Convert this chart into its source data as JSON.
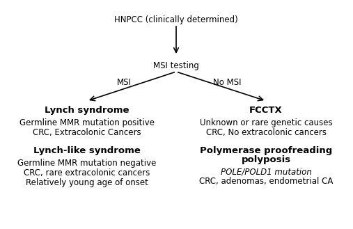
{
  "bg_color": "#ffffff",
  "top_label": "HNPCC (clinically determined)",
  "mid_label": "MSI testing",
  "msi_label": "MSI",
  "no_msi_label": "No MSI",
  "left_box": {
    "title": "Lynch syndrome",
    "lines": [
      "Germline MMR mutation positive",
      "CRC, Extracolonic Cancers"
    ]
  },
  "left_box2": {
    "title": "Lynch-like syndrome",
    "lines": [
      "Germline MMR mutation negative",
      "CRC, rare extracolonic cancers",
      "Relatively young age of onset"
    ]
  },
  "right_box": {
    "title": "FCCTX",
    "lines": [
      "Unknown or rare genetic causes",
      "CRC, No extracolonic cancers"
    ]
  },
  "right_box2": {
    "title_line1": "Polymerase proofreading",
    "title_line2": "polyposis",
    "lines_italic": [
      "POLE/POLD1 mutation"
    ],
    "lines_normal": [
      "CRC, adenomas, endometrial CA"
    ]
  },
  "arrow_color": "#000000",
  "text_color": "#000000",
  "font_size_main": 8.5,
  "font_size_title": 9.5
}
